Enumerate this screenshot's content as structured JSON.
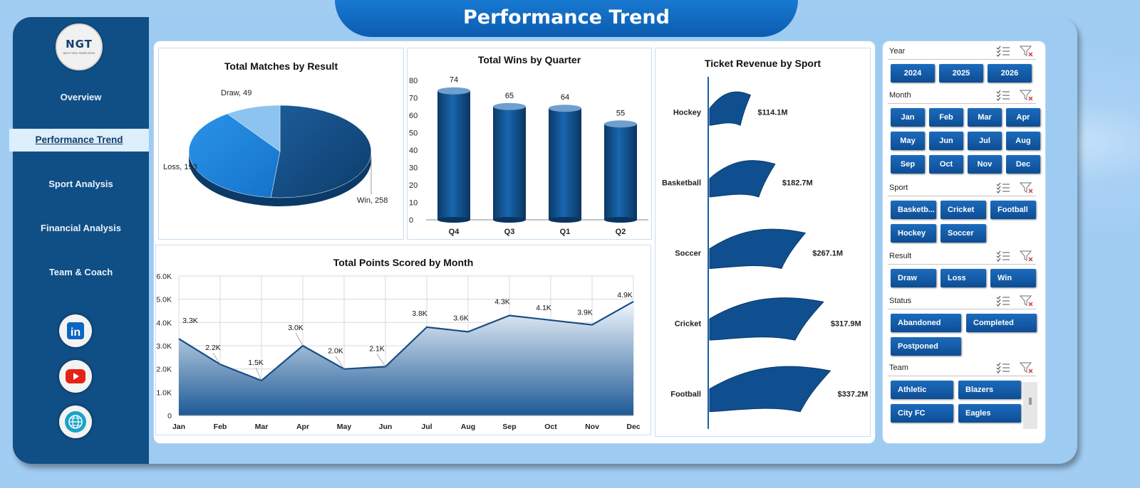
{
  "page_title": "Performance Trend",
  "logo": {
    "text": "NGT",
    "subtitle": "NEXT GEN TEMPLATES"
  },
  "nav": [
    {
      "label": "Overview"
    },
    {
      "label": "Performance Trend",
      "active": true
    },
    {
      "label": "Sport Analysis"
    },
    {
      "label": "Financial Analysis"
    },
    {
      "label": "Team & Coach"
    }
  ],
  "social_icons": [
    "linkedin-icon",
    "youtube-icon",
    "globe-icon"
  ],
  "colors": {
    "accent": "#0b5cb0",
    "sidebar": "#104f85",
    "button": "#1565b5",
    "line": "#174e86"
  },
  "chart_data": [
    {
      "type": "pie",
      "title": "Total Matches by Result",
      "slices": [
        {
          "label": "Win",
          "value": 258
        },
        {
          "label": "Loss",
          "value": 193
        },
        {
          "label": "Draw",
          "value": 49
        }
      ]
    },
    {
      "type": "bar",
      "title": "Total Wins by Quarter",
      "categories": [
        "Q4",
        "Q3",
        "Q1",
        "Q2"
      ],
      "values": [
        74,
        65,
        64,
        55
      ],
      "ylim": [
        0,
        80
      ],
      "yticks": [
        "0",
        "10",
        "20",
        "30",
        "40",
        "50",
        "60",
        "70",
        "80"
      ]
    },
    {
      "type": "bar",
      "title": "Ticket Revenue  by Sport",
      "categories": [
        "Hockey",
        "Basketball",
        "Soccer",
        "Cricket",
        "Football"
      ],
      "values": [
        114.1,
        182.7,
        267.1,
        317.9,
        337.2
      ],
      "value_labels": [
        "$114.1M",
        "$182.7M",
        "$267.1M",
        "$317.9M",
        "$337.2M"
      ],
      "unit": "$M"
    },
    {
      "type": "area",
      "title": "Total Points Scored by Month",
      "categories": [
        "Jan",
        "Feb",
        "Mar",
        "Apr",
        "May",
        "Jun",
        "Jul",
        "Aug",
        "Sep",
        "Oct",
        "Nov",
        "Dec"
      ],
      "values": [
        3.3,
        2.2,
        1.5,
        3.0,
        2.0,
        2.1,
        3.8,
        3.6,
        4.3,
        4.1,
        3.9,
        4.9
      ],
      "value_labels": [
        "3.3K",
        "2.2K",
        "1.5K",
        "3.0K",
        "2.0K",
        "2.1K",
        "3.8K",
        "3.6K",
        "4.3K",
        "4.1K",
        "3.9K",
        "4.9K"
      ],
      "ylim": [
        0,
        6
      ],
      "yticks": [
        "0",
        "1.0K",
        "2.0K",
        "3.0K",
        "4.0K",
        "5.0K",
        "6.0K"
      ],
      "grid": true
    }
  ],
  "slicers": [
    {
      "label": "Year",
      "items": [
        "2024",
        "2025",
        "2026"
      ]
    },
    {
      "label": "Month",
      "items": [
        "Jan",
        "Feb",
        "Mar",
        "Apr",
        "May",
        "Jun",
        "Jul",
        "Aug",
        "Sep",
        "Oct",
        "Nov",
        "Dec"
      ]
    },
    {
      "label": "Sport",
      "items": [
        "Basketb...",
        "Cricket",
        "Football",
        "Hockey",
        "Soccer"
      ]
    },
    {
      "label": "Result",
      "items": [
        "Draw",
        "Loss",
        "Win"
      ]
    },
    {
      "label": "Status",
      "items": [
        "Abandoned",
        "Completed",
        "Postponed"
      ]
    },
    {
      "label": "Team",
      "items": [
        "Athletic",
        "Blazers",
        "City FC",
        "Eagles"
      ]
    }
  ]
}
